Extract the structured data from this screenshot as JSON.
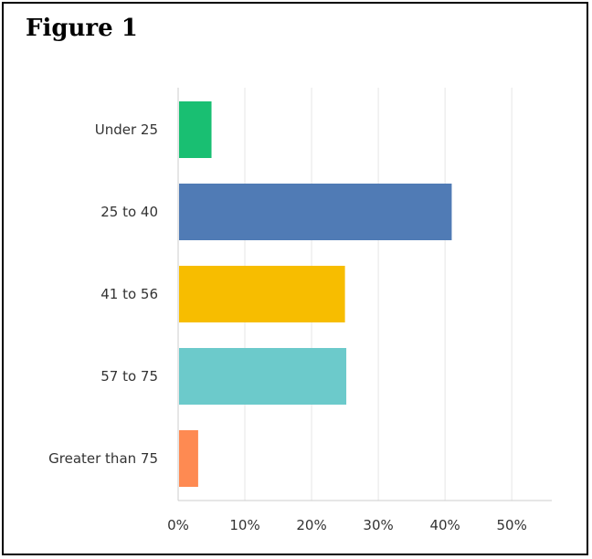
{
  "figure": {
    "title": "Figure 1"
  },
  "chart_data": {
    "type": "bar",
    "orientation": "horizontal",
    "title": "",
    "xlabel": "",
    "ylabel": "",
    "categories": [
      "Under 25",
      "25 to 40",
      "41 to 56",
      "57 to 75",
      "Greater than 75"
    ],
    "values": [
      5,
      41,
      25,
      25.2,
      3
    ],
    "colors": [
      "#19bf72",
      "#507bb5",
      "#f7bd00",
      "#6ccacb",
      "#fe8a52"
    ],
    "xlim": [
      0,
      56
    ],
    "ticks": [
      0,
      10,
      20,
      30,
      40,
      50
    ],
    "tick_labels": [
      "0%",
      "10%",
      "20%",
      "30%",
      "40%",
      "50%"
    ],
    "grid": true
  }
}
